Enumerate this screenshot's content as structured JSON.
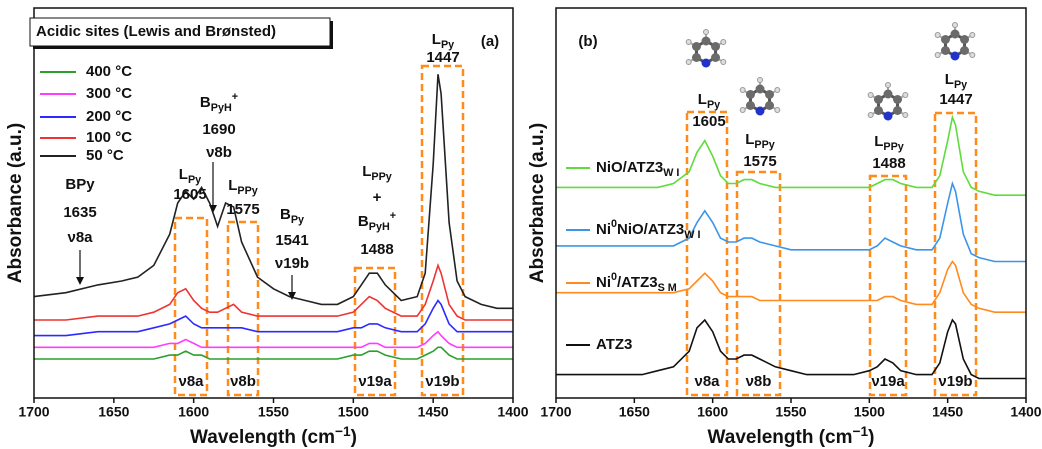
{
  "chart_data": [
    {
      "type": "line",
      "panel_label": "(a)",
      "legend_title": "Acidic sites (Lewis and Brønsted)",
      "y_label": "Absorbance (a.u.)",
      "x_label": [
        "Wavelength (cm",
        {
          "sup": "−1"
        },
        ")"
      ],
      "xlim": [
        1700,
        1400
      ],
      "xticks": [
        1700,
        1650,
        1600,
        1550,
        1500,
        1450,
        1400
      ],
      "ylim": [
        0,
        100
      ],
      "x": [
        1700,
        1680,
        1660,
        1645,
        1635,
        1625,
        1615,
        1610,
        1605,
        1600,
        1595,
        1590,
        1585,
        1580,
        1575,
        1570,
        1560,
        1550,
        1540,
        1530,
        1520,
        1510,
        1500,
        1495,
        1490,
        1485,
        1480,
        1470,
        1460,
        1455,
        1450,
        1447,
        1445,
        1440,
        1435,
        1430,
        1420,
        1410,
        1400
      ],
      "series": [
        {
          "name": [
            "400 °C"
          ],
          "color": "#2ca02c",
          "values": [
            10,
            10,
            10,
            10,
            10,
            10,
            11,
            11,
            12,
            11,
            11,
            10,
            10,
            10,
            10,
            10,
            10,
            10,
            10,
            10,
            10,
            10,
            11,
            11,
            12,
            12,
            11,
            10,
            10,
            11,
            12,
            13,
            13,
            11,
            10,
            10,
            10,
            10,
            10
          ]
        },
        {
          "name": [
            "300 °C"
          ],
          "color": "#ff3cff",
          "values": [
            13,
            13,
            13,
            13,
            13,
            13,
            14,
            14,
            15,
            14,
            13,
            13,
            13,
            13,
            13,
            13,
            13,
            13,
            13,
            13,
            13,
            13,
            13,
            13,
            14,
            14,
            13,
            13,
            13,
            14,
            16,
            17,
            16,
            14,
            13,
            13,
            13,
            13,
            13
          ]
        },
        {
          "name": [
            "200 °C"
          ],
          "color": "#2b2bff",
          "values": [
            16,
            16,
            17,
            17,
            17,
            18,
            19,
            20,
            21,
            19,
            18,
            18,
            18,
            18,
            18,
            18,
            17,
            17,
            17,
            17,
            17,
            17,
            18,
            18,
            19,
            19,
            18,
            17,
            17,
            19,
            23,
            25,
            24,
            19,
            17,
            17,
            17,
            17,
            17
          ]
        },
        {
          "name": [
            "100 °C"
          ],
          "color": "#ee3333",
          "values": [
            20,
            20,
            21,
            21,
            21,
            22,
            24,
            27,
            28,
            25,
            23,
            22,
            22,
            23,
            24,
            22,
            21,
            21,
            21,
            21,
            21,
            21,
            22,
            24,
            26,
            25,
            23,
            21,
            21,
            24,
            30,
            34,
            32,
            24,
            21,
            20,
            20,
            20,
            20
          ]
        },
        {
          "name": [
            "50 °C"
          ],
          "color": "#222222",
          "values": [
            26,
            27,
            29,
            30,
            31,
            34,
            42,
            50,
            53,
            51,
            54,
            50,
            44,
            50,
            49,
            40,
            31,
            28,
            26,
            25,
            24,
            24,
            26,
            29,
            32,
            32,
            29,
            25,
            26,
            32,
            60,
            83,
            78,
            45,
            30,
            26,
            24,
            23,
            23
          ]
        }
      ],
      "annotations": [
        {
          "lines": [
            [
              "BPy"
            ],
            [
              "1635"
            ],
            [
              "ν8a"
            ]
          ]
        },
        {
          "lines": [
            [
              "L",
              {
                "sub": "Py"
              }
            ],
            [
              "1605"
            ]
          ]
        },
        {
          "lines": [
            [
              "B",
              {
                "sub": "PyH"
              },
              {
                "sup": "+"
              }
            ],
            [
              "1690"
            ],
            [
              "ν8b"
            ]
          ]
        },
        {
          "lines": [
            [
              "L",
              {
                "sub": "PPy"
              }
            ],
            [
              "1575"
            ]
          ]
        },
        {
          "lines": [
            [
              "B",
              {
                "sub": "Py"
              }
            ],
            [
              "1541"
            ],
            [
              "ν19b"
            ]
          ]
        },
        {
          "lines": [
            [
              "L",
              {
                "sub": "PPy"
              }
            ],
            [
              "+"
            ],
            [
              "B",
              {
                "sub": "PyH"
              },
              {
                "sup": "+"
              }
            ],
            [
              "1488"
            ]
          ]
        },
        {
          "lines": [
            [
              "L",
              {
                "sub": "Py"
              }
            ],
            [
              "1447"
            ]
          ]
        }
      ],
      "bands": [
        "ν8a",
        "ν8b",
        "ν19a",
        "ν19b"
      ]
    },
    {
      "type": "line",
      "panel_label": "(b)",
      "y_label": "Absorbance (a.u.)",
      "x_label": [
        "Wavelength (cm",
        {
          "sup": "−1"
        },
        ")"
      ],
      "xlim": [
        1700,
        1400
      ],
      "xticks": [
        1700,
        1650,
        1600,
        1550,
        1500,
        1450,
        1400
      ],
      "ylim": [
        0,
        100
      ],
      "x": [
        1700,
        1680,
        1660,
        1645,
        1635,
        1625,
        1615,
        1610,
        1605,
        1600,
        1595,
        1590,
        1585,
        1580,
        1575,
        1570,
        1560,
        1550,
        1540,
        1530,
        1520,
        1510,
        1500,
        1495,
        1490,
        1485,
        1480,
        1470,
        1460,
        1455,
        1450,
        1447,
        1445,
        1440,
        1435,
        1430,
        1420,
        1410,
        1400
      ],
      "series": [
        {
          "name": [
            "NiO/ATZ3",
            {
              "sub": "W I"
            }
          ],
          "color": "#5fdc3c",
          "values": [
            54,
            54,
            54,
            54,
            54,
            55,
            58,
            63,
            66,
            62,
            57,
            55,
            55,
            56,
            56,
            55,
            54,
            54,
            54,
            54,
            54,
            54,
            54,
            55,
            56,
            56,
            55,
            54,
            54,
            57,
            66,
            72,
            70,
            58,
            54,
            53,
            52,
            52,
            52
          ]
        },
        {
          "name": [
            "Ni",
            {
              "sup": "0"
            },
            "NiO/ATZ3",
            {
              "sub": "W I"
            }
          ],
          "color": "#3a95ea",
          "values": [
            39,
            39,
            39,
            39,
            39,
            39,
            41,
            45,
            48,
            45,
            41,
            40,
            40,
            41,
            41,
            40,
            39,
            38,
            38,
            38,
            38,
            38,
            38,
            39,
            41,
            40,
            39,
            38,
            38,
            41,
            50,
            55,
            53,
            42,
            37,
            36,
            35,
            35,
            35
          ]
        },
        {
          "name": [
            "Ni",
            {
              "sup": "0"
            },
            "/ATZ3",
            {
              "sub": "S M"
            }
          ],
          "color": "#ff8a1f",
          "values": [
            27,
            27,
            27,
            27,
            27,
            27,
            28,
            30,
            32,
            30,
            27,
            26,
            26,
            26,
            26,
            25,
            25,
            25,
            25,
            25,
            25,
            25,
            25,
            25,
            26,
            26,
            25,
            24,
            24,
            27,
            33,
            35,
            34,
            27,
            24,
            23,
            22,
            22,
            22
          ]
        },
        {
          "name": [
            "ATZ3"
          ],
          "color": "#111111",
          "values": [
            6,
            6,
            6,
            6,
            7,
            8,
            12,
            18,
            20,
            17,
            12,
            10,
            10,
            11,
            11,
            10,
            8,
            7,
            6,
            6,
            6,
            6,
            7,
            8,
            10,
            9,
            7,
            6,
            6,
            9,
            17,
            20,
            19,
            10,
            6,
            5,
            5,
            5,
            5
          ]
        }
      ],
      "annotations": [
        {
          "lines": [
            [
              "L",
              {
                "sub": "Py"
              }
            ],
            [
              "1605"
            ]
          ]
        },
        {
          "lines": [
            [
              "L",
              {
                "sub": "PPy"
              }
            ],
            [
              "1575"
            ]
          ]
        },
        {
          "lines": [
            [
              "L",
              {
                "sub": "PPy"
              }
            ],
            [
              "1488"
            ]
          ]
        },
        {
          "lines": [
            [
              "L",
              {
                "sub": "Py"
              }
            ],
            [
              "1447"
            ]
          ]
        }
      ],
      "bands": [
        "ν8a",
        "ν8b",
        "ν19a",
        "ν19b"
      ]
    }
  ]
}
